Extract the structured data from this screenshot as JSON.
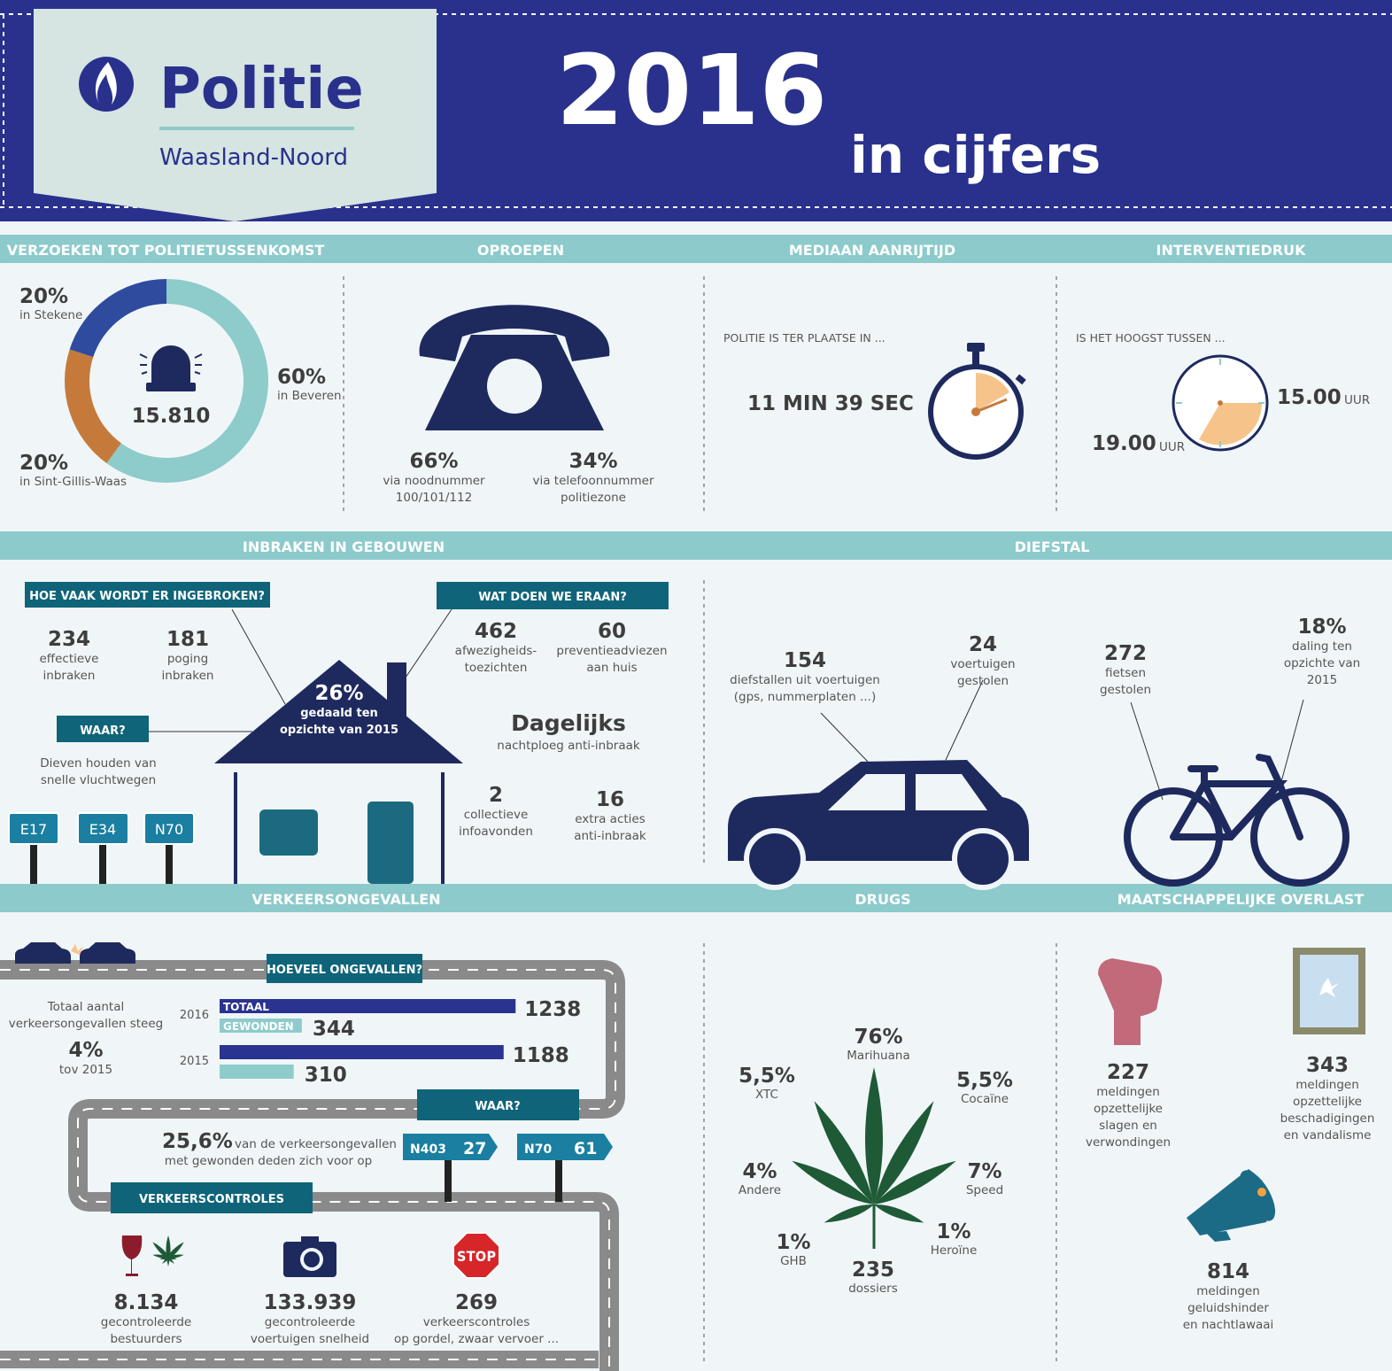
{
  "header": {
    "logo": "Politie",
    "zone": "Waasland-Noord",
    "year": "2016",
    "subtitle": "in cijfers"
  },
  "requests": {
    "title": "VERZOEKEN TOT POLITIETUSSENKOMST",
    "total": "15.810",
    "segments": [
      {
        "value": 60,
        "label": "60%",
        "place": "in Beveren",
        "color": "#8ecbcb"
      },
      {
        "value": 20,
        "label": "20%",
        "place": "in Sint-Gillis-Waas",
        "color": "#c57a3c"
      },
      {
        "value": 20,
        "label": "20%",
        "place": "in Stekene",
        "color": "#2f4b9e"
      }
    ]
  },
  "calls": {
    "title": "OPROEPEN",
    "items": [
      {
        "value": "66%",
        "text": [
          "via noodnummer",
          "100/101/112"
        ]
      },
      {
        "value": "34%",
        "text": [
          "via telefoonnummer",
          "politiezone"
        ]
      }
    ]
  },
  "response": {
    "title": "MEDIAAN AANRIJTIJD",
    "lead": "POLITIE IS TER PLAATSE IN ...",
    "value": "11 MIN 39 SEC"
  },
  "pressure": {
    "title": "INTERVENTIEDRUK",
    "lead": "IS HET HOOGST TUSSEN ...",
    "from": "15.00",
    "to": "19.00",
    "unit": "UUR"
  },
  "burglary": {
    "title": "INBRAKEN IN GEBOUWEN",
    "question": "HOE VAAK WORDT ER INGEBROKEN?",
    "stats": [
      {
        "value": "234",
        "text": [
          "effectieve",
          "inbraken"
        ]
      },
      {
        "value": "181",
        "text": [
          "poging",
          "inbraken"
        ]
      }
    ],
    "house": {
      "value": "26%",
      "text": [
        "gedaald ten",
        "opzichte van 2015"
      ]
    },
    "where_title": "WAAR?",
    "where": [
      "Dieven houden van",
      "snelle vluchtwegen"
    ],
    "roads": [
      "E17",
      "E34",
      "N70"
    ],
    "actions_title": "WAT DOEN WE ERAAN?",
    "actions": [
      {
        "value": "462",
        "text": [
          "afwezigheids-",
          "toezichten"
        ]
      },
      {
        "value": "60",
        "text": [
          "preventieadviezen",
          "aan huis"
        ]
      },
      {
        "value": "Dagelijks",
        "text": [
          "nachtploeg anti-inbraak"
        ]
      },
      {
        "value": "2",
        "text": [
          "collectieve",
          "infoavonden"
        ]
      },
      {
        "value": "16",
        "text": [
          "extra acties",
          "anti-inbraak"
        ]
      }
    ]
  },
  "theft": {
    "title": "DIEFSTAL",
    "items": [
      {
        "value": "154",
        "text": [
          "diefstallen uit voertuigen",
          "(gps,  nummerplaten ...)"
        ]
      },
      {
        "value": "24",
        "text": [
          "voertuigen",
          "gestolen"
        ]
      },
      {
        "value": "272",
        "text": [
          "fietsen",
          "gestolen"
        ]
      },
      {
        "value": "18%",
        "text": [
          "daling ten",
          "opzichte van",
          "2015"
        ]
      }
    ]
  },
  "traffic": {
    "title": "VERKEERSONGEVALLEN",
    "question": "HOEVEEL ONGEVALLEN?",
    "intro": [
      "Totaal aantal",
      "verkeersongevallen steeg"
    ],
    "change": "4%",
    "change_note": "tov 2015",
    "series": [
      "TOTAAL",
      "GEWONDEN"
    ],
    "colors": [
      "#2a338f",
      "#8ecbcb"
    ],
    "years": [
      {
        "year": "2016",
        "total": 1238,
        "injured": 344
      },
      {
        "year": "2015",
        "total": 1188,
        "injured": 310
      }
    ],
    "where_title": "WAAR?",
    "share": "25,6%",
    "share_text": [
      "van de verkeersongevallen",
      "met gewonden deden zich voor op"
    ],
    "roads": [
      {
        "road": "N403",
        "count": "27"
      },
      {
        "road": "N70",
        "count": "61"
      }
    ],
    "controls_title": "VERKEERSCONTROLES",
    "controls": [
      {
        "value": "8.134",
        "text": [
          "gecontroleerde",
          "bestuurders"
        ]
      },
      {
        "value": "133.939",
        "text": [
          "gecontroleerde",
          "voertuigen snelheid"
        ]
      },
      {
        "value": "269",
        "text": [
          "verkeerscontroles",
          "op gordel, zwaar vervoer ..."
        ]
      }
    ]
  },
  "drugs": {
    "title": "DRUGS",
    "items": [
      {
        "value": "76%",
        "name": "Marihuana"
      },
      {
        "value": "5,5%",
        "name": "XTC"
      },
      {
        "value": "5,5%",
        "name": "Cocaïne"
      },
      {
        "value": "4%",
        "name": "Andere"
      },
      {
        "value": "7%",
        "name": "Speed"
      },
      {
        "value": "1%",
        "name": "GHB"
      },
      {
        "value": "1%",
        "name": "Heroïne"
      }
    ],
    "total": "235",
    "total_label": "dossiers"
  },
  "nuisance": {
    "title": "MAATSCHAPPELIJKE OVERLAST",
    "items": [
      {
        "value": "227",
        "text": [
          "meldingen",
          "opzettelijke",
          "slagen en",
          "verwondingen"
        ]
      },
      {
        "value": "343",
        "text": [
          "meldingen",
          "opzettelijke",
          "beschadigingen",
          "en vandalisme"
        ]
      },
      {
        "value": "814",
        "text": [
          "meldingen",
          "geluidshinder",
          "en nachtlawaai"
        ]
      }
    ]
  }
}
